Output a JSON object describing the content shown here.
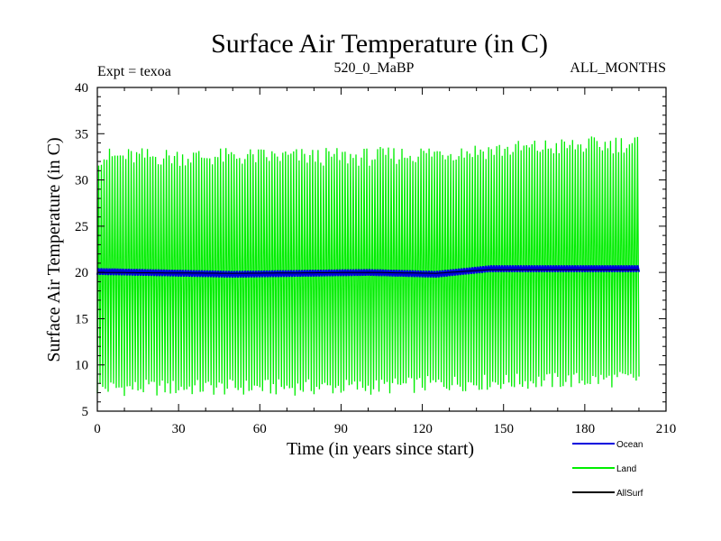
{
  "chart_data": {
    "type": "line",
    "title": "Surface Air Temperature (in C)",
    "header_left": "Expt = texoa",
    "header_center": "520_0_MaBP",
    "header_right": "ALL_MONTHS",
    "xlabel": "Time (in years since start)",
    "ylabel": "Surface Air Temperature (in C)",
    "xlim": [
      0,
      210
    ],
    "ylim": [
      5,
      40
    ],
    "xticks": [
      "0",
      "30",
      "60",
      "90",
      "120",
      "150",
      "180",
      "210"
    ],
    "yticks": [
      "5",
      "10",
      "15",
      "20",
      "25",
      "30",
      "35",
      "40"
    ],
    "grid": false,
    "legend_position": "bottom-right",
    "series": [
      {
        "name": "Land",
        "color": "#00ee00",
        "kind": "seasonal",
        "x_start": 0,
        "x_end": 200,
        "cycles": 200,
        "summer_peak": [
          [
            0,
            32.5
          ],
          [
            100,
            32.5
          ],
          [
            130,
            33.0
          ],
          [
            200,
            34.0
          ]
        ],
        "winter_min": [
          [
            0,
            7.5
          ],
          [
            100,
            7.6
          ],
          [
            130,
            8.0
          ],
          [
            200,
            8.5
          ]
        ]
      },
      {
        "name": "Ocean",
        "color": "#0000dd",
        "kind": "band",
        "x_start": 0,
        "x_end": 200,
        "mean": [
          [
            0,
            20.1
          ],
          [
            50,
            19.8
          ],
          [
            100,
            20.0
          ],
          [
            125,
            19.8
          ],
          [
            145,
            20.4
          ],
          [
            200,
            20.4
          ]
        ],
        "amplitude": 0.35
      },
      {
        "name": "AllSurf",
        "color": "#000000",
        "kind": "line",
        "x_start": 0,
        "x_end": 200,
        "mean": [
          [
            0,
            20.0
          ],
          [
            50,
            19.9
          ],
          [
            100,
            20.0
          ],
          [
            125,
            19.9
          ],
          [
            145,
            20.3
          ],
          [
            200,
            20.3
          ]
        ]
      }
    ]
  }
}
